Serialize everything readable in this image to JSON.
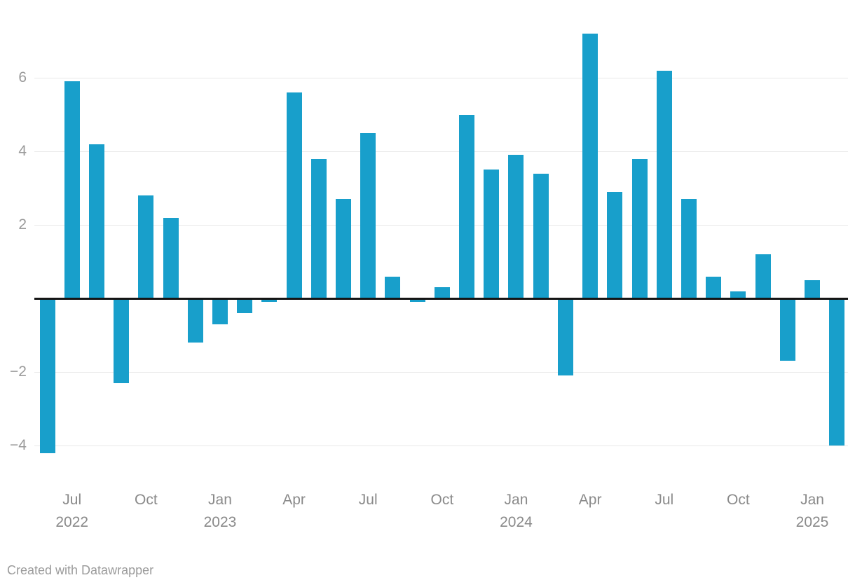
{
  "chart_data": {
    "type": "bar",
    "title": "",
    "xlabel": "",
    "ylabel": "",
    "categories": [
      "Jun 2022",
      "Jul 2022",
      "Aug 2022",
      "Sep 2022",
      "Oct 2022",
      "Nov 2022",
      "Dec 2022",
      "Jan 2023",
      "Feb 2023",
      "Mar 2023",
      "Apr 2023",
      "May 2023",
      "Jun 2023",
      "Jul 2023",
      "Aug 2023",
      "Sep 2023",
      "Oct 2023",
      "Nov 2023",
      "Dec 2023",
      "Jan 2024",
      "Feb 2024",
      "Mar 2024",
      "Apr 2024",
      "May 2024",
      "Jun 2024",
      "Jul 2024",
      "Aug 2024",
      "Sep 2024",
      "Oct 2024",
      "Nov 2024",
      "Dec 2024",
      "Jan 2025",
      "Feb 2025"
    ],
    "values": [
      -4.2,
      5.9,
      4.2,
      -2.3,
      2.8,
      2.2,
      -1.2,
      -0.7,
      -0.4,
      -0.1,
      5.6,
      3.8,
      2.7,
      4.5,
      0.6,
      -0.1,
      0.3,
      5.0,
      3.5,
      3.9,
      3.4,
      -2.1,
      7.2,
      2.9,
      3.8,
      6.2,
      2.7,
      0.6,
      0.2,
      1.2,
      -1.7,
      0.5,
      -4.0
    ],
    "ylim": [
      -4.6,
      7.5
    ],
    "grid": "horizontal",
    "legend": "none",
    "yticks": [
      {
        "v": 6,
        "label": "6"
      },
      {
        "v": 4,
        "label": "4"
      },
      {
        "v": 2,
        "label": "2"
      },
      {
        "v": -2,
        "label": "−2"
      },
      {
        "v": -4,
        "label": "−4"
      }
    ],
    "x_axis_labels": [
      {
        "i": 1,
        "month": "Jul",
        "year": "2022"
      },
      {
        "i": 4,
        "month": "Oct",
        "year": ""
      },
      {
        "i": 7,
        "month": "Jan",
        "year": "2023"
      },
      {
        "i": 10,
        "month": "Apr",
        "year": ""
      },
      {
        "i": 13,
        "month": "Jul",
        "year": ""
      },
      {
        "i": 16,
        "month": "Oct",
        "year": ""
      },
      {
        "i": 19,
        "month": "Jan",
        "year": "2024"
      },
      {
        "i": 22,
        "month": "Apr",
        "year": ""
      },
      {
        "i": 25,
        "month": "Jul",
        "year": ""
      },
      {
        "i": 28,
        "month": "Oct",
        "year": ""
      },
      {
        "i": 31,
        "month": "Jan",
        "year": "2025"
      }
    ]
  },
  "colors": {
    "bar": "#189fcb",
    "zero_line": "#151515",
    "gridline": "#e9e9e9",
    "y_tick_text": "#9a9a9a",
    "x_tick_text": "#8a8a8a",
    "credit_text": "#9b9b9b"
  },
  "footer": {
    "credit": "Created with Datawrapper"
  }
}
